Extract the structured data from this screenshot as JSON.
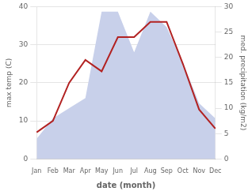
{
  "chart_data": {
    "type": "line",
    "xlabel": "date (month)",
    "ylabel": "max temp (C)",
    "y2label": "med. precipitation (kg/m2)",
    "categories": [
      "Jan",
      "Feb",
      "Mar",
      "Apr",
      "May",
      "Jun",
      "Jul",
      "Aug",
      "Sep",
      "Oct",
      "Nov",
      "Dec"
    ],
    "series": [
      {
        "type": "area",
        "axis": "y2",
        "color": "#c8d0ea",
        "values": [
          4,
          8,
          10,
          12,
          29,
          29,
          21,
          29,
          26,
          19,
          11,
          8
        ]
      },
      {
        "type": "line",
        "color": "#b22222",
        "values": [
          7,
          10,
          20,
          26,
          23,
          32,
          32,
          36,
          36,
          25,
          13,
          8
        ]
      }
    ],
    "ylim": [
      0,
      40
    ],
    "yticks": [
      0,
      10,
      20,
      30,
      40
    ],
    "y2lim": [
      0,
      30
    ],
    "y2ticks": [
      0,
      5,
      10,
      15,
      20,
      25,
      30
    ],
    "grid": true
  }
}
